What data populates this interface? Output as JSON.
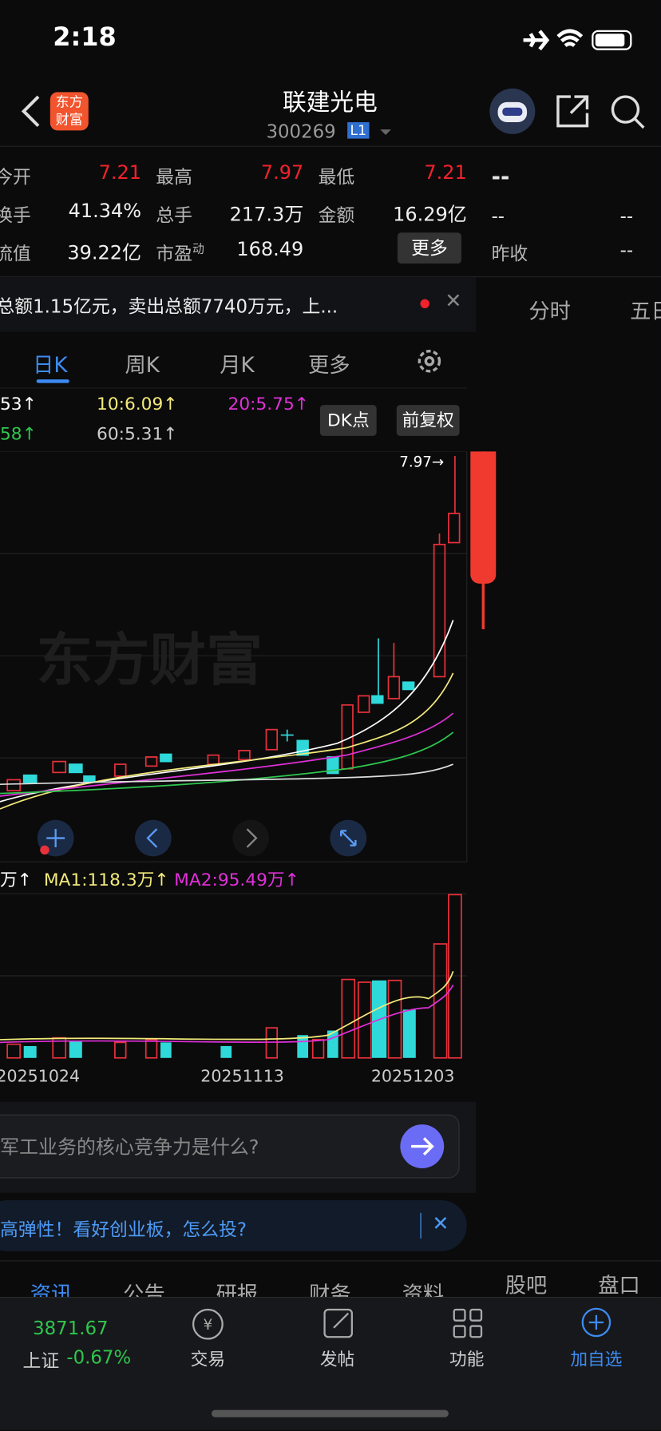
{
  "status": {
    "time": "2:18"
  },
  "header": {
    "logo": [
      "东方",
      "财富"
    ],
    "title": "联建光电",
    "code": "300269",
    "badge": "L1"
  },
  "quote": [
    {
      "label": "今开",
      "value": "7.21"
    },
    {
      "label": "最高",
      "value": "7.97"
    },
    {
      "label": "最低",
      "value": "7.21"
    },
    {
      "label": "换手",
      "value": "41.34%"
    },
    {
      "label": "总手",
      "value": "217.3万"
    },
    {
      "label": "金额",
      "value": "16.29亿"
    },
    {
      "label": "流值",
      "value": "39.22亿"
    },
    {
      "label": "市盈",
      "sup": "动",
      "value": "168.49"
    }
  ],
  "quote_more": "更多",
  "side": [
    "--",
    "--",
    "--",
    "昨收",
    "--"
  ],
  "notice": "总额1.15亿元，卖出总额7740万元，上...",
  "side_tabs": [
    "分时",
    "五日"
  ],
  "tabs": [
    "日K",
    "周K",
    "月K",
    "更多"
  ],
  "ma": [
    "53↑",
    "10:6.09↑",
    "20:5.75↑",
    "58↑",
    "60:5.31↑"
  ],
  "buttons": [
    "DK点",
    "前复权"
  ],
  "watermark": "东方财富",
  "price_label": "7.97→",
  "volume_ma": [
    "万↑",
    "MA1:118.3万↑",
    "MA2:95.49万↑"
  ],
  "dates": [
    "20251024",
    "20251113",
    "20251203"
  ],
  "question": "军工业务的核心竞争力是什么?",
  "banner": "高弹性！看好创业板，怎么投?",
  "info_tabs": [
    "资讯",
    "公告",
    "研报",
    "财务",
    "资料",
    "股吧",
    "盘口"
  ],
  "nav": {
    "index_value": "3871.67",
    "index_name": "上证",
    "index_change": "-0.67%",
    "items": [
      "交易",
      "发帖",
      "功能",
      "加自选"
    ]
  }
}
